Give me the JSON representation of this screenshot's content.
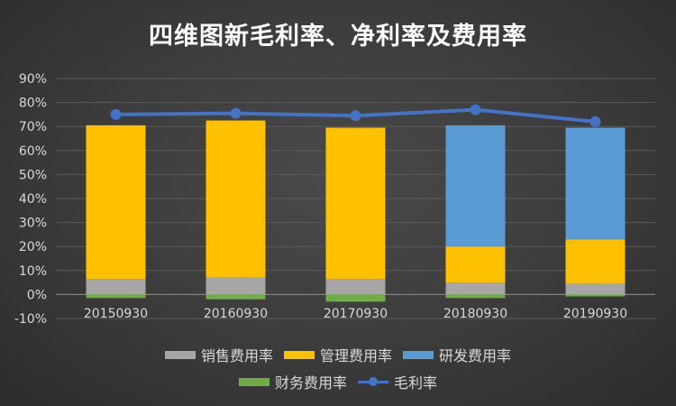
{
  "title": "四维图新毛利率、净利率及费用率",
  "colors": {
    "sales": "#a6a6a6",
    "admin": "#ffc000",
    "rd": "#5b9bd5",
    "finance": "#70ad47",
    "gross": "#4472c4"
  },
  "chart_data": {
    "type": "bar",
    "stacked": true,
    "categories": [
      "20150930",
      "20160930",
      "20170930",
      "20180930",
      "20190930"
    ],
    "ylim": [
      -10,
      90
    ],
    "yticks": [
      "-10%",
      "0%",
      "10%",
      "20%",
      "30%",
      "40%",
      "50%",
      "60%",
      "70%",
      "80%",
      "90%"
    ],
    "series": [
      {
        "name": "销售费用率",
        "type": "bar",
        "color": "#a6a6a6",
        "values": [
          6.5,
          7,
          6.5,
          5,
          4.5
        ]
      },
      {
        "name": "管理费用率",
        "type": "bar",
        "color": "#ffc000",
        "values": [
          64,
          65.5,
          63,
          15,
          18.5
        ]
      },
      {
        "name": "研发费用率",
        "type": "bar",
        "color": "#5b9bd5",
        "values": [
          0,
          0,
          0,
          50.5,
          46.5
        ]
      },
      {
        "name": "财务费用率",
        "type": "bar",
        "color": "#70ad47",
        "values": [
          -1.5,
          -2,
          -3,
          -1.5,
          -0.8
        ]
      },
      {
        "name": "毛利率",
        "type": "line",
        "color": "#4472c4",
        "values": [
          75,
          75.5,
          74.5,
          77,
          72
        ]
      }
    ],
    "legend_position": "bottom",
    "grid": true
  }
}
